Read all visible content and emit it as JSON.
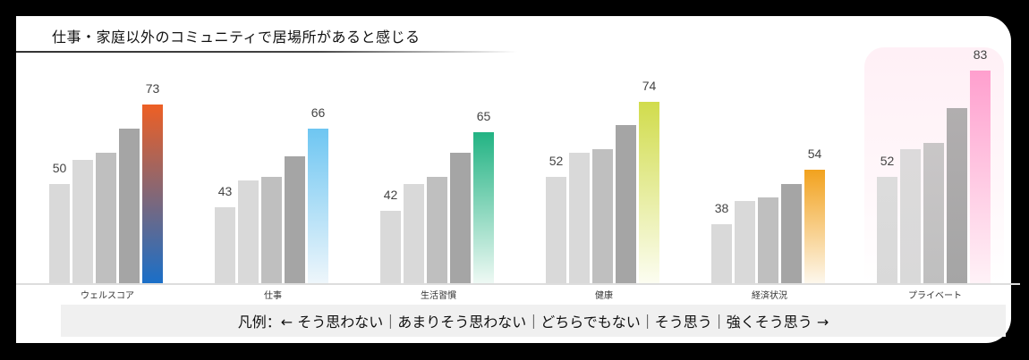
{
  "title": "仕事・家庭以外のコミュニティで居場所があると感じる",
  "legend": "凡例：← そう思わない｜あまりそう思わない｜どちらでもない｜そう思う｜強くそう思う →",
  "chart_data": {
    "type": "bar",
    "title": "仕事・家庭以外のコミュニティで居場所があると感じる",
    "categories": [
      "ウェルスコア",
      "仕事",
      "生活習慣",
      "健康",
      "経済状況",
      "プライベート"
    ],
    "series": [
      {
        "name": "そう思わない",
        "values": [
          50,
          43,
          42,
          52,
          38,
          52
        ]
      },
      {
        "name": "あまりそう思わない",
        "values": [
          57,
          51,
          50,
          59,
          45,
          60
        ]
      },
      {
        "name": "どちらでもない",
        "values": [
          59,
          52,
          52,
          60,
          46,
          62
        ]
      },
      {
        "name": "そう思う",
        "values": [
          66,
          58,
          59,
          67,
          50,
          72
        ]
      },
      {
        "name": "強くそう思う",
        "values": [
          73,
          66,
          65,
          74,
          54,
          83
        ]
      }
    ],
    "labeled_values": {
      "ウェルスコア": {
        "low": 50,
        "high": 73
      },
      "仕事": {
        "low": 43,
        "high": 66
      },
      "生活習慣": {
        "low": 42,
        "high": 65
      },
      "健康": {
        "low": 52,
        "high": 74
      },
      "経済状況": {
        "low": 38,
        "high": 54
      },
      "プライベート": {
        "low": 52,
        "high": 83
      }
    },
    "accent_colors": {
      "ウェルスコア": [
        "#ee5f24",
        "#1a6fc8"
      ],
      "仕事": [
        "#6ec6f2",
        "#eef6fb"
      ],
      "生活習慣": [
        "#22b383",
        "#eef9f4"
      ],
      "健康": [
        "#d1dc4c",
        "#fcfdf1"
      ],
      "経済状況": [
        "#f2a21e",
        "#fdf7ec"
      ],
      "プライベート": [
        "#ff9fce",
        "#fff2f7"
      ]
    },
    "highlighted_category": "プライベート",
    "xlabel": "",
    "ylabel": "",
    "grid": false,
    "legend_position": "bottom"
  }
}
